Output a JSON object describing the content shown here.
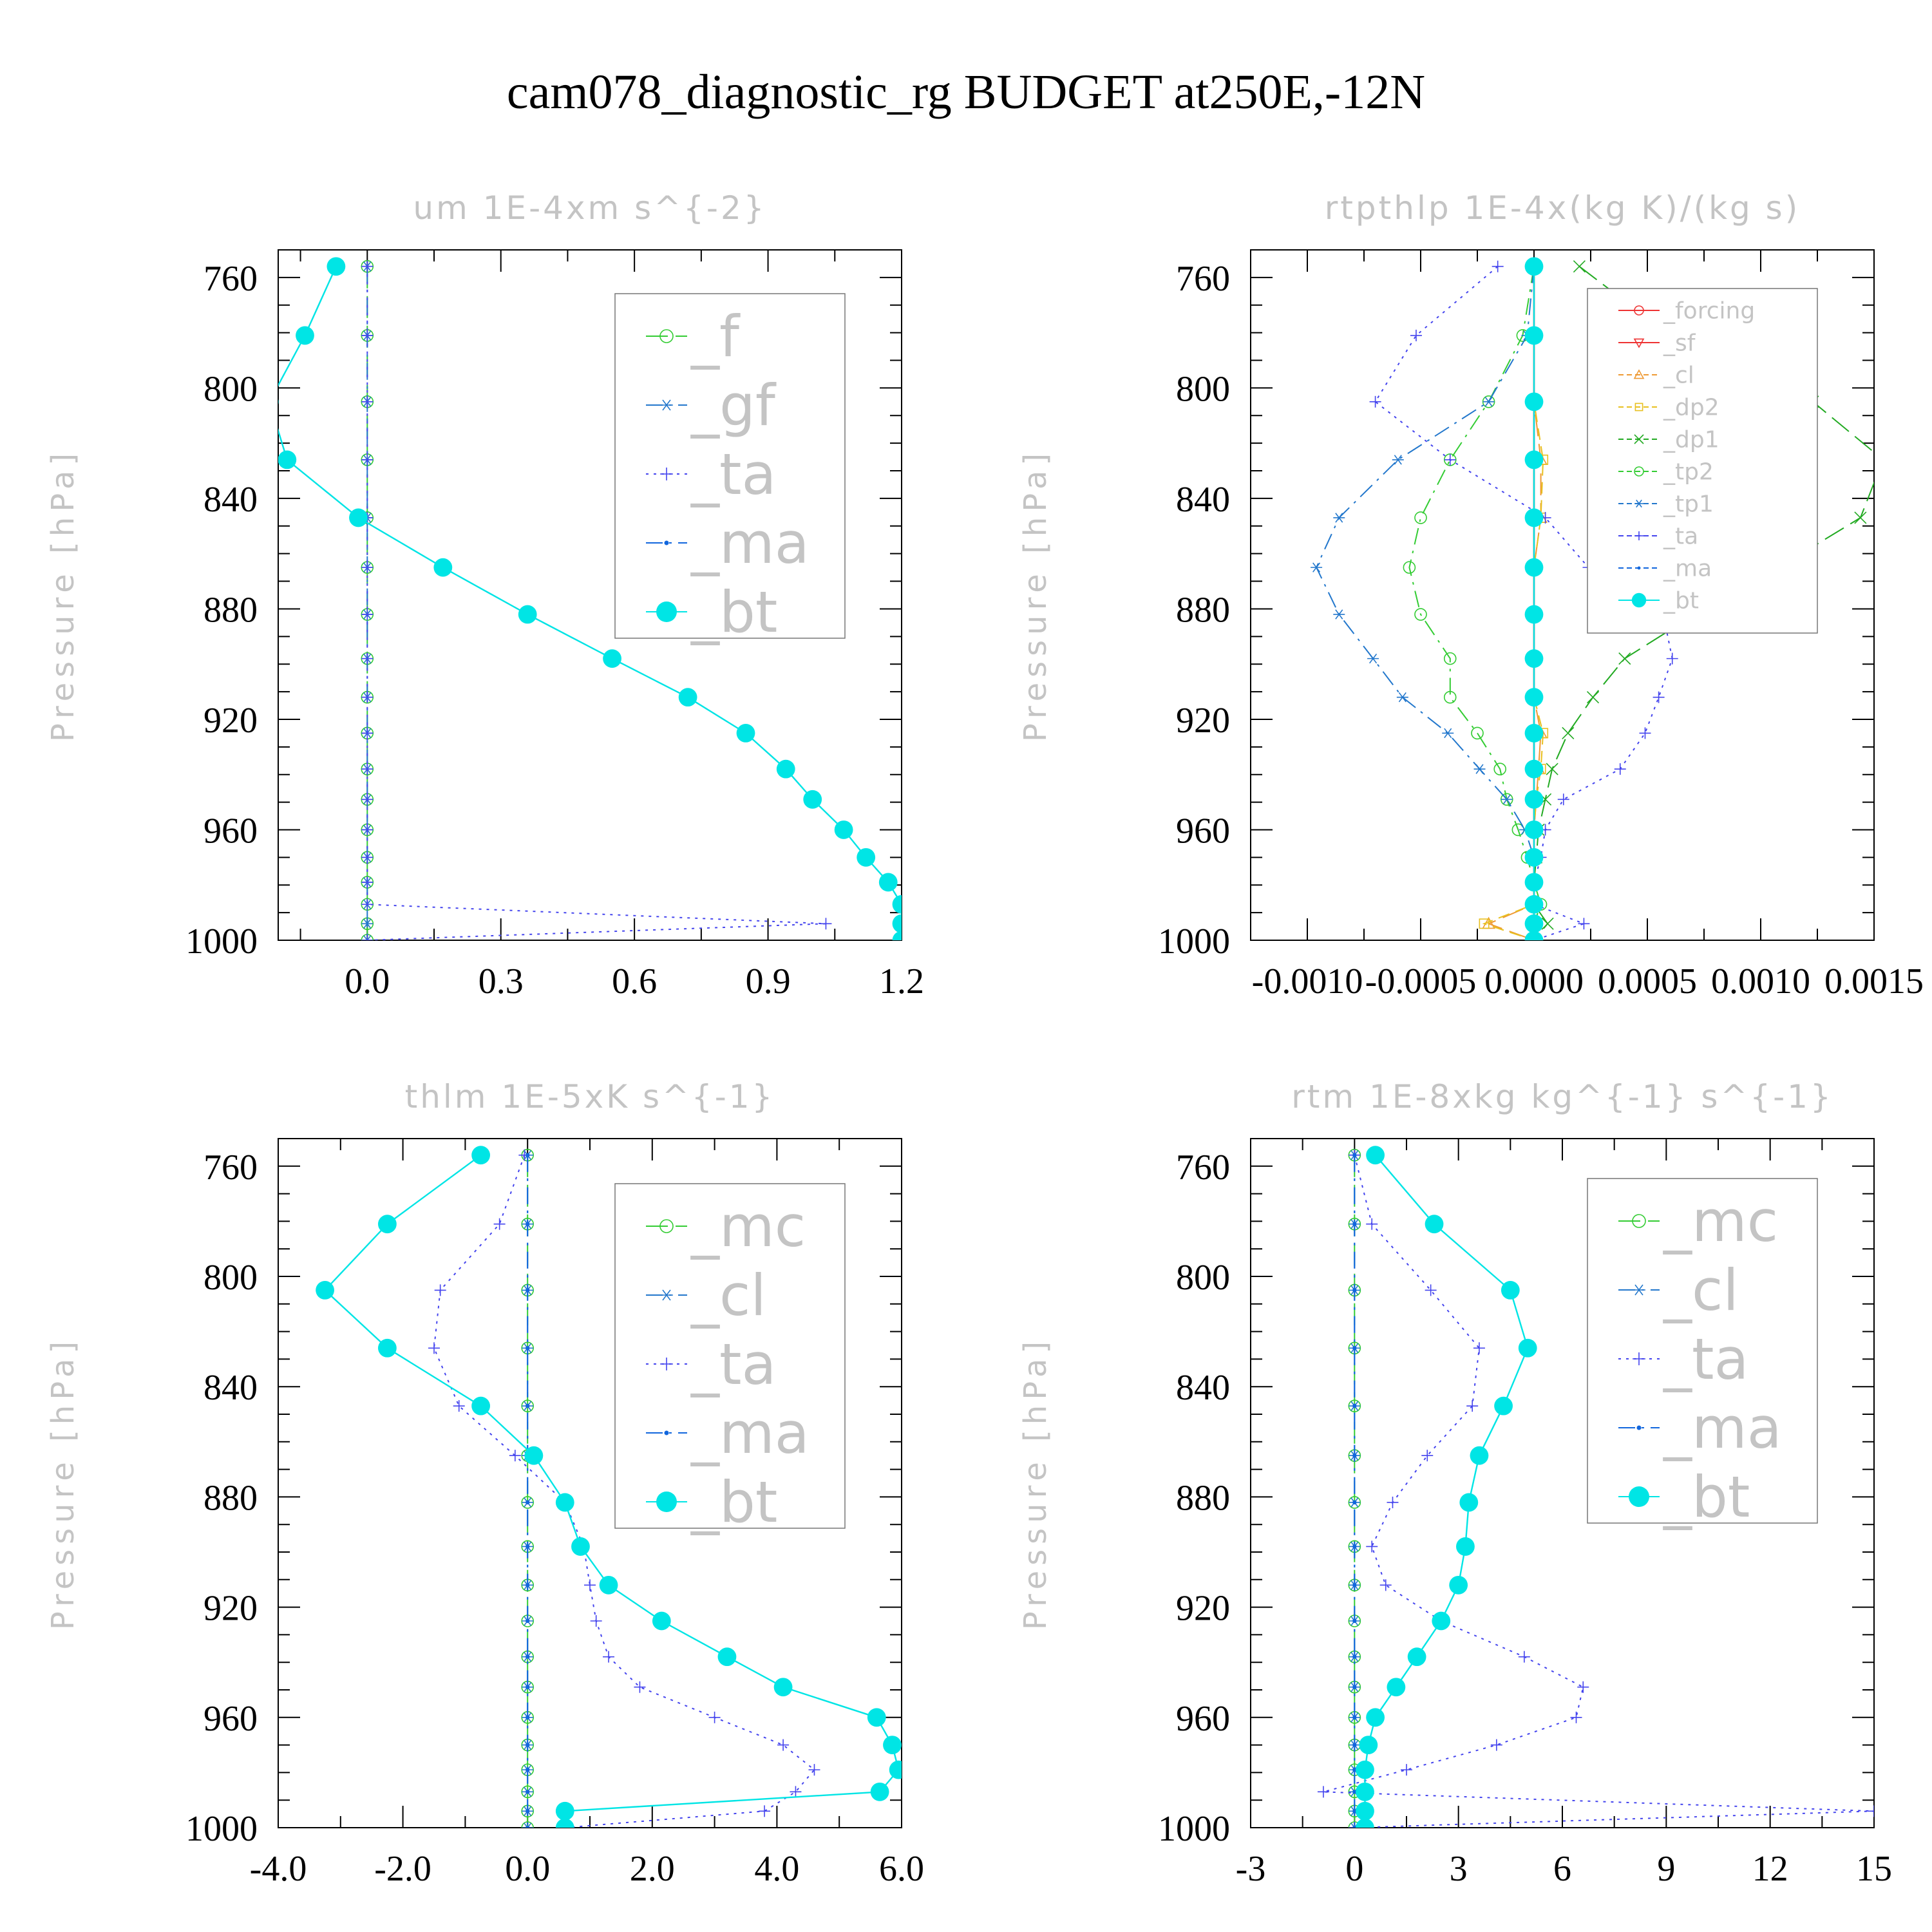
{
  "title": "cam078_diagnostic_rg  BUDGET at250E,-12N",
  "colors": {
    "green": "#33cc33",
    "blue": "#4444ee",
    "cyan": "#00e5e5",
    "steel": "#2277cc",
    "dblue": "#1166dd",
    "red": "#ee3333",
    "orange": "#ee9933",
    "yellow": "#e8c020",
    "dgreen": "#22aa22"
  },
  "chart_data": [
    {
      "type": "line",
      "title": "um  1E-4xm s^{-2}",
      "ylabel": "Pressure [hPa]",
      "xlim": [
        -0.2,
        1.2
      ],
      "ylim": [
        750,
        1000
      ],
      "x_ticks": [
        "0.0",
        "0.3",
        "0.6",
        "0.9",
        "1.2"
      ],
      "x_tick_values": [
        0,
        0.3,
        0.6,
        0.9,
        1.2
      ],
      "y_ticks": [
        "760",
        "800",
        "840",
        "880",
        "920",
        "960",
        "1000"
      ],
      "y_tick_values": [
        760,
        800,
        840,
        880,
        920,
        960,
        1000
      ],
      "legend": "top-right",
      "pressure": [
        756,
        781,
        805,
        826,
        847,
        865,
        882,
        898,
        912,
        925,
        938,
        949,
        960,
        970,
        979,
        987,
        994,
        1000
      ],
      "series": [
        {
          "name": "_f",
          "color": "green",
          "style": "longdash",
          "marker": "circle",
          "legend_size": "large",
          "values": [
            0,
            0,
            0,
            0,
            0,
            0,
            0,
            0,
            0,
            0,
            0,
            0,
            0,
            0,
            0,
            0,
            0,
            0
          ]
        },
        {
          "name": "_gf",
          "color": "steel",
          "style": "dashdot",
          "marker": "asterisk",
          "legend_size": "large",
          "values": [
            0,
            0,
            0,
            0,
            0,
            0,
            0,
            0,
            0,
            0,
            0,
            0,
            0,
            0,
            0,
            0,
            0,
            0
          ]
        },
        {
          "name": "_ta",
          "color": "blue",
          "style": "dotted",
          "marker": "plus",
          "legend_size": "large",
          "values": [
            0,
            0,
            0,
            0,
            0,
            0,
            0,
            0,
            0,
            0,
            0,
            0,
            0,
            0,
            0,
            0,
            1.03,
            0
          ]
        },
        {
          "name": "_ma",
          "color": "dblue",
          "style": "dashdot",
          "marker": "dot",
          "legend_size": "large",
          "values": [
            -0.07,
            -0.14,
            -0.22,
            -0.18,
            -0.02,
            0.17,
            0.36,
            0.55,
            0.72,
            0.85,
            0.94,
            1.0,
            1.07,
            1.12,
            1.17,
            1.2,
            1.2,
            1.2
          ]
        },
        {
          "name": "_bt",
          "color": "cyan",
          "style": "solid",
          "marker": "filled",
          "legend_size": "large",
          "values": [
            -0.07,
            -0.14,
            -0.22,
            -0.18,
            -0.02,
            0.17,
            0.36,
            0.55,
            0.72,
            0.85,
            0.94,
            1.0,
            1.07,
            1.12,
            1.17,
            1.2,
            1.2,
            1.2
          ]
        }
      ]
    },
    {
      "type": "line",
      "title": "rtpthlp  1E-4x(kg K)/(kg s)",
      "ylabel": "Pressure [hPa]",
      "xlim": [
        -0.00125,
        0.0015
      ],
      "ylim": [
        750,
        1000
      ],
      "x_ticks": [
        "-0.0010",
        "-0.0005",
        "0.0000",
        "0.0005",
        "0.0010",
        "0.0015"
      ],
      "x_tick_values": [
        -0.001,
        -0.0005,
        0,
        0.0005,
        0.001,
        0.0015
      ],
      "y_ticks": [
        "760",
        "800",
        "840",
        "880",
        "920",
        "960",
        "1000"
      ],
      "y_tick_values": [
        760,
        800,
        840,
        880,
        920,
        960,
        1000
      ],
      "legend": "top-right",
      "pressure": [
        756,
        781,
        805,
        826,
        847,
        865,
        882,
        898,
        912,
        925,
        938,
        949,
        960,
        970,
        979,
        987,
        994,
        1000
      ],
      "series": [
        {
          "name": "_forcing",
          "color": "red",
          "style": "solid",
          "marker": "circle",
          "legend_size": "small",
          "values": [
            0,
            0,
            0,
            0,
            0,
            0,
            0,
            0,
            0,
            0,
            0,
            0,
            0,
            0,
            0,
            0,
            0,
            0
          ]
        },
        {
          "name": "_sf",
          "color": "red",
          "style": "solid",
          "marker": "trianglev",
          "legend_size": "small",
          "values": [
            0,
            0,
            0,
            0,
            0,
            0,
            0,
            0,
            0,
            0,
            0,
            0,
            0,
            0,
            0,
            0,
            0,
            0
          ]
        },
        {
          "name": "_cl",
          "color": "orange",
          "style": "longdash",
          "marker": "triangle",
          "legend_size": "small",
          "values": [
            0,
            0,
            0,
            3e-05,
            3e-05,
            0,
            0,
            0,
            0,
            3e-05,
            2e-05,
            1e-05,
            0,
            0,
            0,
            0,
            -0.0002,
            0
          ]
        },
        {
          "name": "_dp2",
          "color": "yellow",
          "style": "dashed",
          "marker": "square",
          "legend_size": "small",
          "values": [
            0,
            0,
            0,
            4e-05,
            3e-05,
            0,
            0,
            0,
            0,
            4e-05,
            3e-05,
            1e-05,
            0,
            0,
            0,
            0,
            -0.00022,
            0
          ]
        },
        {
          "name": "_dp1",
          "color": "dgreen",
          "style": "longdash",
          "marker": "cross",
          "legend_size": "small",
          "values": [
            0.0002,
            0.0006,
            0.00123,
            0.00154,
            0.00144,
            0.00108,
            0.00071,
            0.0004,
            0.00026,
            0.00015,
            8e-05,
            5e-05,
            2e-05,
            1e-05,
            0,
            0,
            6e-05,
            0
          ]
        },
        {
          "name": "_tp2",
          "color": "green",
          "style": "dashdot",
          "marker": "circle",
          "legend_size": "small",
          "values": [
            0,
            -5e-05,
            -0.0002,
            -0.00037,
            -0.0005,
            -0.00055,
            -0.0005,
            -0.00037,
            -0.00037,
            -0.00025,
            -0.00015,
            -0.00012,
            -7e-05,
            -3e-05,
            0,
            3e-05,
            0,
            0
          ]
        },
        {
          "name": "_tp1",
          "color": "steel",
          "style": "dashdot",
          "marker": "asterisk",
          "legend_size": "small",
          "values": [
            0,
            -3e-05,
            -0.0002,
            -0.0006,
            -0.00086,
            -0.00096,
            -0.00086,
            -0.00071,
            -0.00058,
            -0.00038,
            -0.00024,
            -0.00012,
            -4e-05,
            0,
            0,
            0,
            0,
            0
          ]
        },
        {
          "name": "_ta",
          "color": "blue",
          "style": "dotted",
          "marker": "plus",
          "legend_size": "small",
          "values": [
            -0.00016,
            -0.00052,
            -0.0007,
            -0.00037,
            5e-05,
            0.00024,
            0.00057,
            0.00061,
            0.00055,
            0.00049,
            0.00038,
            0.00013,
            5e-05,
            3e-05,
            0,
            0,
            0.00022,
            0
          ]
        },
        {
          "name": "_ma",
          "color": "dblue",
          "style": "dashdot",
          "marker": "dot",
          "legend_size": "small",
          "values": [
            0,
            0,
            0,
            0,
            0,
            0,
            0,
            0,
            0,
            0,
            0,
            0,
            0,
            0,
            0,
            0,
            0,
            0
          ]
        },
        {
          "name": "_bt",
          "color": "cyan",
          "style": "solid",
          "marker": "filled",
          "legend_size": "small",
          "values": [
            0,
            0,
            0,
            0,
            0,
            0,
            0,
            0,
            0,
            0,
            0,
            0,
            0,
            0,
            0,
            0,
            0,
            0
          ]
        }
      ]
    },
    {
      "type": "line",
      "title": "thlm  1E-5xK s^{-1}",
      "ylabel": "Pressure [hPa]",
      "xlim": [
        -4.0,
        6.0
      ],
      "ylim": [
        750,
        1000
      ],
      "x_ticks": [
        "-4.0",
        "-2.0",
        "0.0",
        "2.0",
        "4.0",
        "6.0"
      ],
      "x_tick_values": [
        -4,
        -2,
        0,
        2,
        4,
        6
      ],
      "y_ticks": [
        "760",
        "800",
        "840",
        "880",
        "920",
        "960",
        "1000"
      ],
      "y_tick_values": [
        760,
        800,
        840,
        880,
        920,
        960,
        1000
      ],
      "legend": "top-right",
      "pressure": [
        756,
        781,
        805,
        826,
        847,
        865,
        882,
        898,
        912,
        925,
        938,
        949,
        960,
        970,
        979,
        987,
        994,
        1000
      ],
      "series": [
        {
          "name": "_mc",
          "color": "green",
          "style": "longdash",
          "marker": "circle",
          "legend_size": "large",
          "values": [
            0,
            0,
            0,
            0,
            0,
            0,
            0,
            0,
            0,
            0,
            0,
            0,
            0,
            0,
            0,
            0,
            0,
            0
          ]
        },
        {
          "name": "_cl",
          "color": "steel",
          "style": "dashdot",
          "marker": "asterisk",
          "legend_size": "large",
          "values": [
            0,
            0,
            0,
            0,
            0,
            0,
            0,
            0,
            0,
            0,
            0,
            0,
            0,
            0,
            0,
            0,
            0,
            0
          ]
        },
        {
          "name": "_ta",
          "color": "blue",
          "style": "dotted",
          "marker": "plus",
          "legend_size": "large",
          "values": [
            -0.05,
            -0.45,
            -1.4,
            -1.5,
            -1.1,
            -0.2,
            0.6,
            0.9,
            1.0,
            1.1,
            1.3,
            1.8,
            3.0,
            4.1,
            4.6,
            4.3,
            3.8,
            0.6
          ]
        },
        {
          "name": "_ma",
          "color": "dblue",
          "style": "dashdot",
          "marker": "dot",
          "legend_size": "large",
          "values": [
            0,
            0,
            0,
            0,
            0,
            0,
            0,
            0,
            0,
            0,
            0,
            0,
            0,
            0,
            0,
            0,
            0,
            0
          ]
        },
        {
          "name": "_bt",
          "color": "cyan",
          "style": "solid",
          "marker": "filled",
          "legend_size": "large",
          "values": [
            -0.75,
            -2.25,
            -3.25,
            -2.25,
            -0.75,
            0.1,
            0.6,
            0.85,
            1.3,
            2.15,
            3.2,
            4.1,
            5.6,
            5.85,
            5.95,
            5.65,
            0.6,
            0.6
          ]
        }
      ]
    },
    {
      "type": "line",
      "title": "rtm  1E-8xkg kg^{-1} s^{-1}",
      "ylabel": "Pressure [hPa]",
      "xlim": [
        -3,
        15
      ],
      "ylim": [
        750,
        1000
      ],
      "x_ticks": [
        "-3",
        "0",
        "3",
        "6",
        "9",
        "12",
        "15"
      ],
      "x_tick_values": [
        -3,
        0,
        3,
        6,
        9,
        12,
        15
      ],
      "y_ticks": [
        "760",
        "800",
        "840",
        "880",
        "920",
        "960",
        "1000"
      ],
      "y_tick_values": [
        760,
        800,
        840,
        880,
        920,
        960,
        1000
      ],
      "legend": "top-right",
      "pressure": [
        756,
        781,
        805,
        826,
        847,
        865,
        882,
        898,
        912,
        925,
        938,
        949,
        960,
        970,
        979,
        987,
        994,
        1000
      ],
      "series": [
        {
          "name": "_mc",
          "color": "green",
          "style": "longdash",
          "marker": "circle",
          "legend_size": "large",
          "values": [
            0,
            0,
            0,
            0,
            0,
            0,
            0,
            0,
            0,
            0,
            0,
            0,
            0,
            0,
            0,
            0,
            0,
            0
          ]
        },
        {
          "name": "_cl",
          "color": "steel",
          "style": "dashdot",
          "marker": "asterisk",
          "legend_size": "large",
          "values": [
            0,
            0,
            0,
            0,
            0,
            0,
            0,
            0,
            0,
            0,
            0,
            0,
            0,
            0,
            0,
            0,
            0,
            0
          ]
        },
        {
          "name": "_ta",
          "color": "blue",
          "style": "dotted",
          "marker": "plus",
          "legend_size": "large",
          "values": [
            0,
            0.5,
            2.2,
            3.6,
            3.4,
            2.1,
            1.1,
            0.5,
            0.9,
            2.5,
            4.9,
            6.6,
            6.4,
            4.1,
            1.5,
            -0.9,
            15,
            0
          ]
        },
        {
          "name": "_ma",
          "color": "dblue",
          "style": "dashdot",
          "marker": "dot",
          "legend_size": "large",
          "values": [
            0,
            0,
            0,
            0,
            0,
            0,
            0,
            0,
            0,
            0,
            0,
            0,
            0,
            0,
            0,
            0,
            0,
            0
          ]
        },
        {
          "name": "_bt",
          "color": "cyan",
          "style": "solid",
          "marker": "filled",
          "legend_size": "large",
          "values": [
            0.6,
            2.3,
            4.5,
            5.0,
            4.3,
            3.6,
            3.3,
            3.2,
            3.0,
            2.5,
            1.8,
            1.2,
            0.6,
            0.4,
            0.3,
            0.3,
            0.3,
            0.3
          ]
        }
      ]
    }
  ]
}
